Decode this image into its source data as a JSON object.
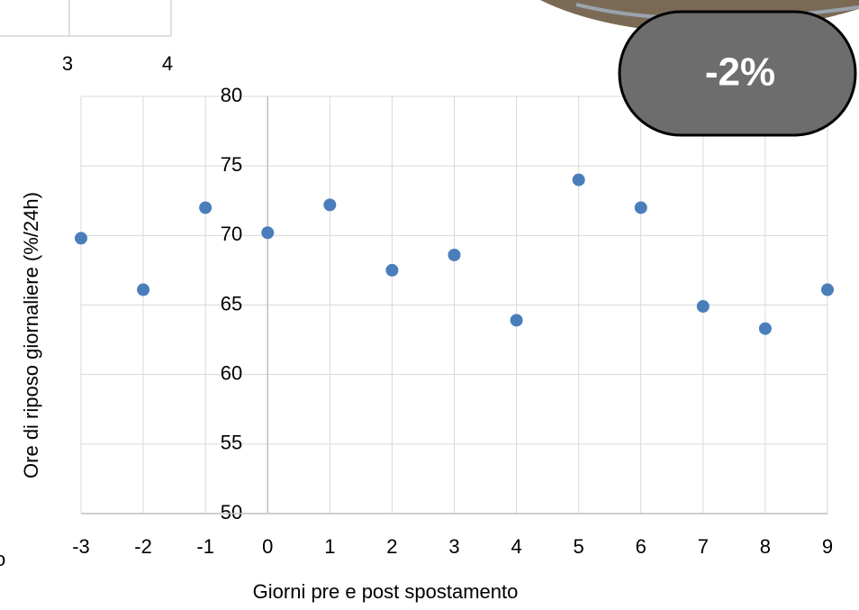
{
  "chart_data": {
    "type": "scatter",
    "x_label": "Giorni pre e post spostamento",
    "y_label": "Ore di riposo giornaliere (%/24h)",
    "x": [
      -3,
      -2,
      -1,
      0,
      1,
      2,
      3,
      4,
      5,
      6,
      7,
      8,
      9
    ],
    "series": [
      {
        "color": "#4a7ebb",
        "values": [
          69.8,
          66.1,
          72.0,
          70.2,
          72.2,
          67.5,
          68.6,
          63.9,
          74.0,
          72.0,
          64.9,
          63.3,
          66.1
        ]
      }
    ],
    "xlim": [
      -3,
      9
    ],
    "xticks": [
      -3,
      -2,
      -1,
      0,
      1,
      2,
      3,
      4,
      5,
      6,
      7,
      8,
      9
    ],
    "ylim": [
      50,
      80
    ],
    "yticks": [
      50,
      55,
      60,
      65,
      70,
      75,
      80
    ],
    "grid": true
  },
  "fragments": {
    "left_number": "3",
    "right_number": "4",
    "cut_text": "o"
  },
  "badge": "-2%"
}
